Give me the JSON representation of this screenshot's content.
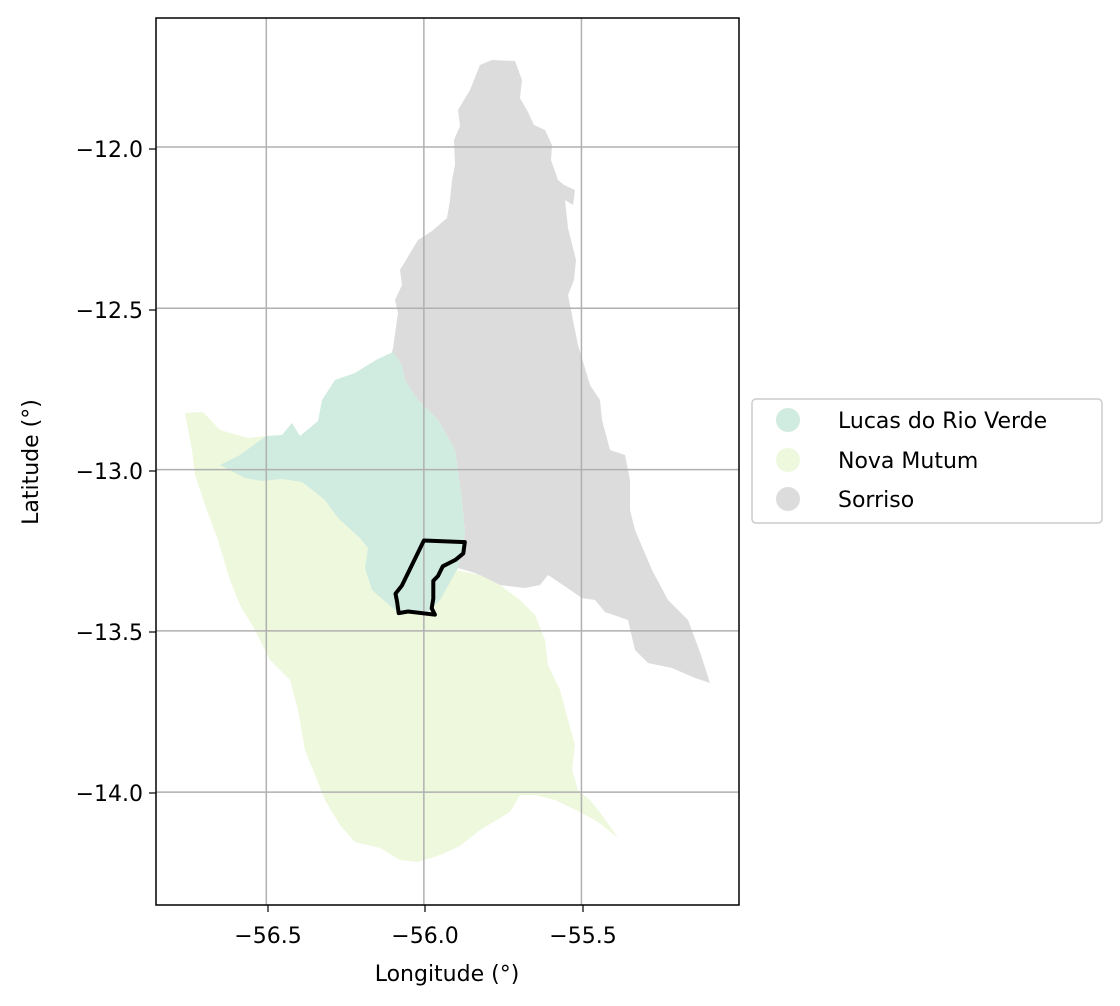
{
  "chart_data": {
    "type": "choropleth map",
    "xlabel": "Longitude (°)",
    "ylabel": "Latitude (°)",
    "xlim": [
      -56.85,
      -55.0
    ],
    "ylim": [
      -14.35,
      -11.6
    ],
    "x_ticks": [
      -56.5,
      -56.0,
      -55.5
    ],
    "y_ticks": [
      -12.0,
      -12.5,
      -13.0,
      -13.5,
      -14.0
    ],
    "x_tick_labels": [
      "−56.5",
      "−56.0",
      "−55.5"
    ],
    "y_tick_labels": [
      "−12.0",
      "−12.5",
      "−13.0",
      "−13.5",
      "−14.0"
    ],
    "grid": true,
    "legend_placement": "right-center",
    "regions": [
      {
        "name": "Lucas do Rio Verde",
        "color": "#d0ebe0"
      },
      {
        "name": "Nova Mutum",
        "color": "#edf8dc"
      },
      {
        "name": "Sorriso",
        "color": "#dcdcdc"
      }
    ],
    "highlight_outline": {
      "color": "#000000",
      "coordinates": [
        [
          -56.0,
          -13.22
        ],
        [
          -55.87,
          -13.225
        ],
        [
          -55.875,
          -13.26
        ],
        [
          -55.9,
          -13.28
        ],
        [
          -55.94,
          -13.3
        ],
        [
          -55.955,
          -13.33
        ],
        [
          -55.97,
          -13.345
        ],
        [
          -55.97,
          -13.4
        ],
        [
          -55.975,
          -13.43
        ],
        [
          -55.965,
          -13.45
        ],
        [
          -56.05,
          -13.44
        ],
        [
          -56.08,
          -13.445
        ],
        [
          -56.085,
          -13.41
        ],
        [
          -56.09,
          -13.385
        ],
        [
          -56.07,
          -13.36
        ],
        [
          -56.045,
          -13.31
        ],
        [
          -56.0,
          -13.22
        ]
      ]
    }
  }
}
